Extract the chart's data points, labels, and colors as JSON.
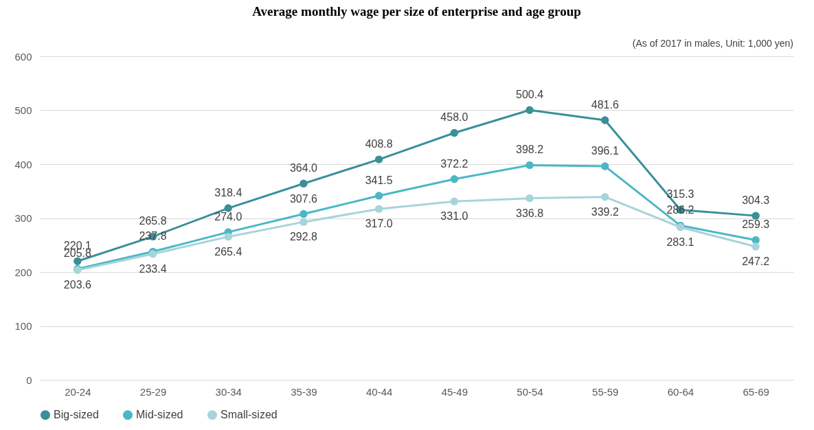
{
  "chart_data": {
    "type": "line",
    "title": "Average monthly wage per size of enterprise and age group",
    "annotations": [
      "(As of 2017 in males, Unit: 1,000 yen)"
    ],
    "categories": [
      "20-24",
      "25-29",
      "30-34",
      "35-39",
      "40-44",
      "45-49",
      "50-54",
      "55-59",
      "60-64",
      "65-69"
    ],
    "series": [
      {
        "name": "Big-sized",
        "color": "#3a8f99",
        "values": [
          220.1,
          265.8,
          318.4,
          364.0,
          408.8,
          458.0,
          500.4,
          481.6,
          315.3,
          304.3
        ],
        "value_labels": [
          "220.1",
          "265.8",
          "318.4",
          "364.0",
          "408.8",
          "458.0",
          "500.4",
          "481.6",
          "315.3",
          "304.3"
        ]
      },
      {
        "name": "Mid-sized",
        "color": "#4bb7c6",
        "values": [
          205.8,
          237.8,
          274.0,
          307.6,
          341.5,
          372.2,
          398.2,
          396.1,
          286.2,
          259.3
        ],
        "value_labels": [
          "205.8",
          "237.8",
          "274.0",
          "307.6",
          "341.5",
          "372.2",
          "398.2",
          "396.1",
          "286.2",
          "259.3"
        ]
      },
      {
        "name": "Small-sized",
        "color": "#a7d4da",
        "values": [
          203.6,
          233.4,
          265.4,
          292.8,
          317.0,
          331.0,
          336.8,
          339.2,
          283.1,
          247.2
        ],
        "value_labels": [
          "203.6",
          "233.4",
          "265.4",
          "292.8",
          "317.0",
          "331.0",
          "336.8",
          "339.2",
          "283.1",
          "247.2"
        ]
      }
    ],
    "ylim": [
      0,
      600
    ],
    "yticks": [
      0,
      100,
      200,
      300,
      400,
      500,
      600
    ],
    "grid": "y",
    "legend": "bottom",
    "marker": "circle",
    "line_style": "solid"
  }
}
